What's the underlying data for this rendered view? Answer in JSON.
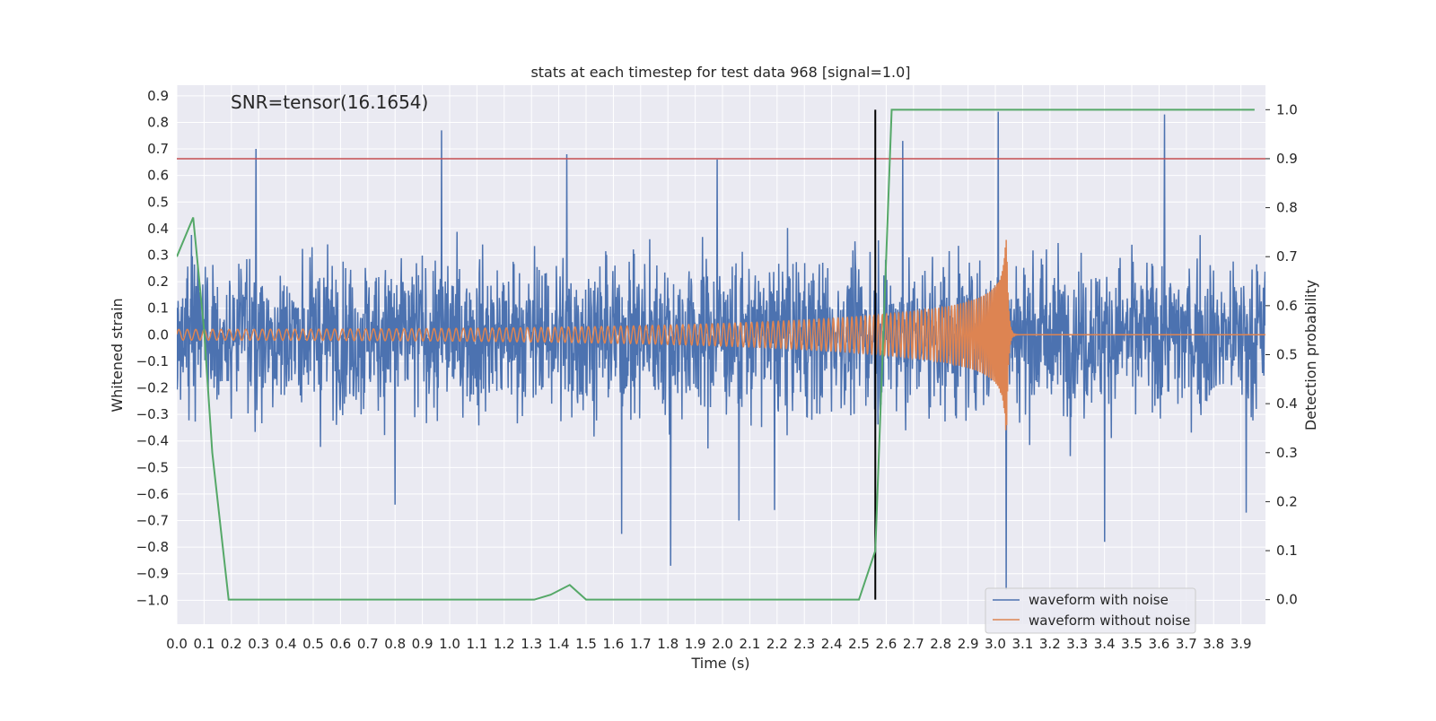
{
  "chart_data": {
    "type": "line",
    "title": "stats at each timestep for test data 968 [signal=1.0]",
    "annotation": "SNR=tensor(16.1654)",
    "xlabel": "Time (s)",
    "ylabel": "Whitened strain",
    "y2label": "Detection probability",
    "xlim": [
      0.0,
      3.99
    ],
    "ylim": [
      -1.09,
      0.94
    ],
    "y2lim": [
      -0.05,
      1.05
    ],
    "x_ticks": [
      "0.0",
      "0.1",
      "0.2",
      "0.3",
      "0.4",
      "0.5",
      "0.6",
      "0.7",
      "0.8",
      "0.9",
      "1.0",
      "1.1",
      "1.2",
      "1.3",
      "1.4",
      "1.5",
      "1.6",
      "1.7",
      "1.8",
      "1.9",
      "2.0",
      "2.1",
      "2.2",
      "2.3",
      "2.4",
      "2.5",
      "2.6",
      "2.7",
      "2.8",
      "2.9",
      "3.0",
      "3.1",
      "3.2",
      "3.3",
      "3.4",
      "3.5",
      "3.6",
      "3.7",
      "3.8",
      "3.9"
    ],
    "y_ticks": [
      "0.9",
      "0.8",
      "0.7",
      "0.6",
      "0.5",
      "0.4",
      "0.3",
      "0.2",
      "0.1",
      "0.0",
      "−0.1",
      "−0.2",
      "−0.3",
      "−0.4",
      "−0.5",
      "−0.6",
      "−0.7",
      "−0.8",
      "−0.9",
      "−1.0"
    ],
    "y2_ticks": [
      "1.0",
      "0.9",
      "0.8",
      "0.7",
      "0.6",
      "0.5",
      "0.4",
      "0.3",
      "0.2",
      "0.1",
      "0.0"
    ],
    "grid": true,
    "legend_placement": "lower-right",
    "threshold_probability": 0.9,
    "detection_time": 2.56,
    "series": [
      {
        "name": "waveform with noise",
        "color": "#4c72b0",
        "noise_amplitude": 0.26,
        "peaks": [
          [
            0.29,
            0.7
          ],
          [
            0.97,
            0.77
          ],
          [
            1.43,
            0.68
          ],
          [
            1.98,
            0.66
          ],
          [
            2.66,
            0.73
          ],
          [
            3.01,
            0.84
          ],
          [
            3.62,
            0.83
          ],
          [
            1.81,
            -0.87
          ],
          [
            3.04,
            -0.96
          ],
          [
            3.4,
            -0.78
          ],
          [
            1.63,
            -0.75
          ],
          [
            2.06,
            -0.7
          ],
          [
            3.92,
            -0.67
          ],
          [
            0.8,
            -0.64
          ],
          [
            2.19,
            -0.66
          ]
        ]
      },
      {
        "name": "waveform without noise",
        "color": "#dd8452",
        "merger_time": 3.04,
        "start_amplitude": 0.02,
        "peak_amplitude": 0.47,
        "start_frequency_hz": 32,
        "merger_frequency_hz": 300
      },
      {
        "name": "detection probability",
        "color": "#55a868",
        "axis": "right",
        "x": [
          0.0,
          0.06,
          0.1,
          0.13,
          0.19,
          0.25,
          0.5,
          1.0,
          1.31,
          1.37,
          1.44,
          1.5,
          1.56,
          2.0,
          2.44,
          2.5,
          2.56,
          2.62,
          2.66,
          3.95
        ],
        "values": [
          0.7,
          0.78,
          0.55,
          0.3,
          0.0,
          0.0,
          0.0,
          0.0,
          0.0,
          0.01,
          0.03,
          0.0,
          0.0,
          0.0,
          0.0,
          0.0,
          0.1,
          1.0,
          1.0,
          1.0
        ]
      }
    ],
    "threshold_color": "#c44e52",
    "marker_color": "#000000"
  }
}
